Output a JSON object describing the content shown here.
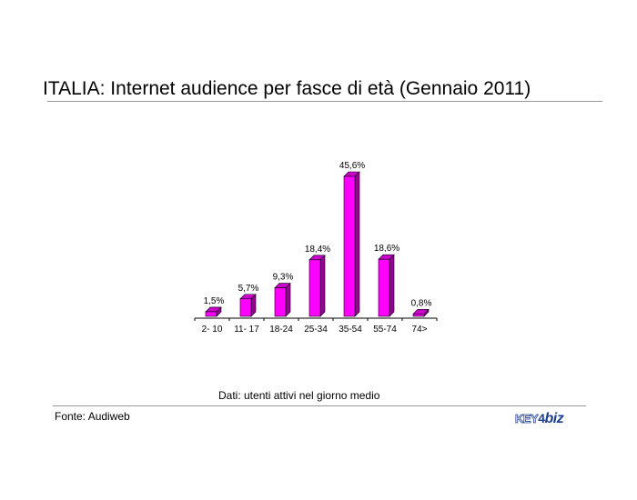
{
  "header": {
    "title": "ITALIA: Internet audience per fasce di età (Gennaio 2011)"
  },
  "footer": {
    "caption": "Dati: utenti attivi nel giorno medio",
    "source": "Fonte: Audiweb",
    "logo_a": "KEY",
    "logo_b": "4",
    "logo_c": "biz"
  },
  "chart_data": {
    "type": "bar",
    "title": "ITALIA: Internet audience per fasce di età (Gennaio 2011)",
    "categories": [
      "2- 10",
      "11- 17",
      "18-24",
      "25-34",
      "35-54",
      "55-74",
      "74>"
    ],
    "values": [
      1.5,
      5.7,
      9.3,
      18.4,
      45.6,
      18.6,
      0.8
    ],
    "data_labels": [
      "1,5%",
      "5,7%",
      "9,3%",
      "18,4%",
      "45,6%",
      "18,6%",
      "0,8%"
    ],
    "ylim": [
      0,
      45.6
    ],
    "grid": false,
    "three_d": true,
    "colors": {
      "bar_front": "#ff00ff",
      "bar_side": "#990099",
      "bar_top": "#cc00cc",
      "axis": "#000000"
    }
  }
}
